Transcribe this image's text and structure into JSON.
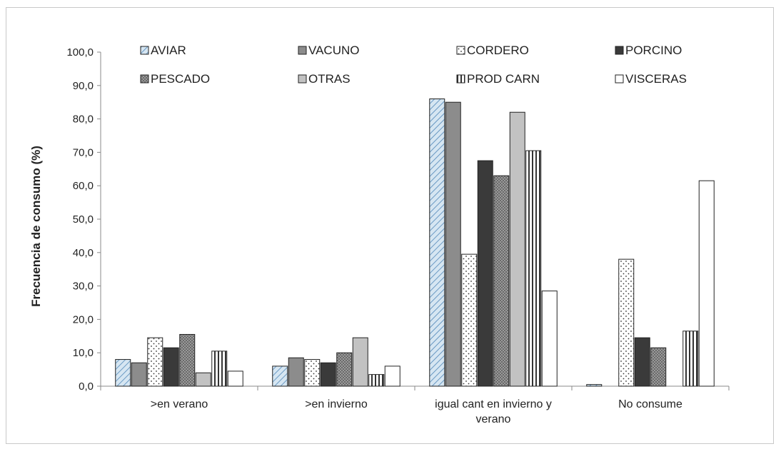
{
  "chart_data": {
    "type": "bar",
    "ylabel": "Frecuencia de consumo (%)",
    "ylim": [
      0,
      100
    ],
    "ytick_step": 10,
    "ytick_labels": [
      "0,0",
      "10,0",
      "20,0",
      "30,0",
      "40,0",
      "50,0",
      "60,0",
      "70,0",
      "80,0",
      "90,0",
      "100,0"
    ],
    "grid": false,
    "legend_position": "top",
    "categories": [
      {
        "lines": [
          ">en verano"
        ]
      },
      {
        "lines": [
          ">en invierno"
        ]
      },
      {
        "lines": [
          "igual cant en invierno y",
          "verano"
        ]
      },
      {
        "lines": [
          "No consume"
        ]
      }
    ],
    "series": [
      {
        "name": "AVIAR",
        "pattern": "hatch-blue",
        "values": [
          8.0,
          6.0,
          86.0,
          0.5
        ]
      },
      {
        "name": "VACUNO",
        "pattern": "solid-gray",
        "values": [
          7.0,
          8.5,
          85.0,
          0
        ]
      },
      {
        "name": "CORDERO",
        "pattern": "dots-white",
        "values": [
          14.5,
          8.0,
          39.5,
          38.0
        ]
      },
      {
        "name": "PORCINO",
        "pattern": "solid-dark",
        "values": [
          11.5,
          7.0,
          67.5,
          14.5
        ]
      },
      {
        "name": "PESCADO",
        "pattern": "checker",
        "values": [
          15.5,
          10.0,
          63.0,
          11.5
        ]
      },
      {
        "name": "OTRAS",
        "pattern": "solid-light",
        "values": [
          4.0,
          14.5,
          82.0,
          0
        ]
      },
      {
        "name": "PROD CARN",
        "pattern": "vstripes",
        "values": [
          10.5,
          3.5,
          70.5,
          16.5
        ]
      },
      {
        "name": "VISCERAS",
        "pattern": "solid-white",
        "values": [
          4.5,
          6.0,
          28.5,
          61.5
        ]
      }
    ]
  }
}
